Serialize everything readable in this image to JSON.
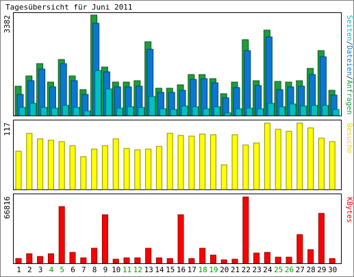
{
  "chart_data": [
    {
      "type": "bar",
      "title": "Tagesübersicht für Juni 2011",
      "ylabel_max": "3382",
      "ylim": [
        0,
        3382
      ],
      "categories": [
        "1",
        "2",
        "3",
        "4",
        "5",
        "6",
        "7",
        "8",
        "9",
        "10",
        "11",
        "12",
        "13",
        "14",
        "15",
        "16",
        "17",
        "18",
        "19",
        "20",
        "21",
        "22",
        "23",
        "24",
        "25",
        "26",
        "27",
        "28",
        "29",
        "30"
      ],
      "legend": [
        {
          "text": "Seiten",
          "color": "#00c0c0"
        },
        {
          "text": "/",
          "color": "#333333"
        },
        {
          "text": "Dateien",
          "color": "#0a78d2"
        },
        {
          "text": "/",
          "color": "#333333"
        },
        {
          "text": "Anfragen",
          "color": "#1d9e3a"
        }
      ],
      "series": [
        {
          "name": "Anfragen",
          "color": "#1d9e3a",
          "values": [
            990,
            1330,
            1740,
            1130,
            1880,
            1330,
            880,
            3382,
            1640,
            1130,
            1130,
            1180,
            2480,
            920,
            920,
            1030,
            1380,
            1390,
            1240,
            730,
            1130,
            2560,
            1180,
            2880,
            1150,
            1130,
            1180,
            1590,
            2180,
            840
          ]
        },
        {
          "name": "Dateien",
          "color": "#0a78d2",
          "values": [
            720,
            1170,
            1570,
            960,
            1750,
            1180,
            710,
            3110,
            1470,
            970,
            960,
            1000,
            2240,
            780,
            790,
            850,
            1230,
            1250,
            1100,
            590,
            940,
            2180,
            1020,
            2650,
            870,
            960,
            980,
            1370,
            1980,
            680
          ]
        },
        {
          "name": "Seiten",
          "color": "#00c0c0",
          "values": [
            270,
            420,
            270,
            260,
            350,
            270,
            160,
            1510,
            900,
            250,
            290,
            270,
            640,
            220,
            200,
            330,
            290,
            230,
            310,
            100,
            240,
            260,
            240,
            410,
            310,
            390,
            320,
            350,
            350,
            200
          ]
        }
      ]
    },
    {
      "type": "bar",
      "ylabel_max": "117",
      "ylim": [
        0,
        117
      ],
      "categories": [
        "1",
        "2",
        "3",
        "4",
        "5",
        "6",
        "7",
        "8",
        "9",
        "10",
        "11",
        "12",
        "13",
        "14",
        "15",
        "16",
        "17",
        "18",
        "19",
        "20",
        "21",
        "22",
        "23",
        "24",
        "25",
        "26",
        "27",
        "28",
        "29",
        "30"
      ],
      "legend": [
        {
          "text": "Besuche",
          "color": "#e6d800"
        }
      ],
      "series": [
        {
          "name": "Besuche",
          "color": "#ffff00",
          "values": [
            67,
            99,
            89,
            87,
            84,
            77,
            58,
            71,
            77,
            89,
            72,
            70,
            71,
            76,
            99,
            95,
            94,
            98,
            97,
            43,
            97,
            78,
            82,
            117,
            106,
            103,
            117,
            108,
            91,
            84
          ]
        }
      ]
    },
    {
      "type": "bar",
      "ylabel_max": "66816",
      "ylim": [
        0,
        66816
      ],
      "categories": [
        "1",
        "2",
        "3",
        "4",
        "5",
        "6",
        "7",
        "8",
        "9",
        "10",
        "11",
        "12",
        "13",
        "14",
        "15",
        "16",
        "17",
        "18",
        "19",
        "20",
        "21",
        "22",
        "23",
        "24",
        "25",
        "26",
        "27",
        "28",
        "29",
        "30"
      ],
      "legend": [
        {
          "text": "KBytes",
          "color": "#e60000"
        }
      ],
      "series": [
        {
          "name": "KBytes",
          "color": "#ff0000",
          "values": [
            4700,
            9800,
            7000,
            9300,
            57200,
            11000,
            5200,
            15200,
            49200,
            3900,
            5400,
            5500,
            15200,
            5800,
            4900,
            48800,
            4700,
            15000,
            8300,
            3700,
            4100,
            66816,
            10500,
            11100,
            6400,
            6500,
            28800,
            13900,
            50000,
            4800
          ]
        }
      ]
    }
  ],
  "weekend_days": [
    "4",
    "5",
    "11",
    "12",
    "18",
    "19",
    "25",
    "26"
  ],
  "colors": {
    "background": "#ffffff",
    "panel_border": "#000000",
    "outer_border": "#7f7f7f",
    "label_text": "#000000",
    "weekend_label": "#00a000"
  }
}
